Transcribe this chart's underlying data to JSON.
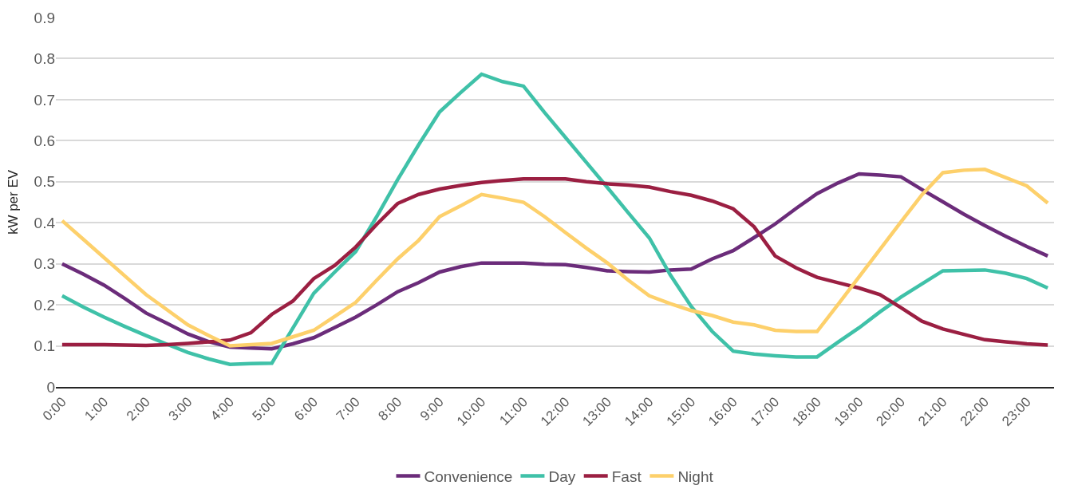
{
  "chart_data": {
    "type": "line",
    "ylabel": "kW per EV",
    "categories": [
      "0:00",
      null,
      "1:00",
      null,
      "2:00",
      null,
      "3:00",
      null,
      "4:00",
      null,
      "5:00",
      null,
      "6:00",
      null,
      "7:00",
      null,
      "8:00",
      null,
      "9:00",
      null,
      "10:00",
      null,
      "11:00",
      null,
      "12:00",
      null,
      "13:00",
      null,
      "14:00",
      null,
      "15:00",
      null,
      "16:00",
      null,
      "17:00",
      null,
      "18:00",
      null,
      "19:00",
      null,
      "20:00",
      null,
      "21:00",
      null,
      "22:00",
      null,
      "23:00",
      null
    ],
    "series": [
      {
        "name": "Convenience",
        "color": "#6b2c7a",
        "values": [
          0.3,
          0.275,
          0.248,
          0.215,
          0.18,
          0.155,
          0.129,
          0.11,
          0.097,
          0.095,
          0.093,
          0.105,
          0.12,
          0.145,
          0.17,
          0.2,
          0.232,
          0.254,
          0.28,
          0.293,
          0.302,
          0.302,
          0.302,
          0.299,
          0.298,
          0.291,
          0.283,
          0.281,
          0.28,
          0.285,
          0.287,
          0.312,
          0.332,
          0.364,
          0.397,
          0.435,
          0.471,
          0.497,
          0.519,
          0.516,
          0.512,
          0.481,
          0.451,
          0.421,
          0.393,
          0.367,
          0.342,
          0.319
        ]
      },
      {
        "name": "Day",
        "color": "#3fc1a8",
        "values": [
          0.222,
          0.195,
          0.17,
          0.147,
          0.125,
          0.104,
          0.084,
          0.068,
          0.055,
          0.057,
          0.058,
          0.143,
          0.228,
          0.28,
          0.33,
          0.415,
          0.505,
          0.59,
          0.67,
          0.717,
          0.762,
          0.744,
          0.733,
          0.669,
          0.608,
          0.547,
          0.486,
          0.424,
          0.363,
          0.273,
          0.196,
          0.135,
          0.087,
          0.08,
          0.076,
          0.073,
          0.073,
          0.109,
          0.144,
          0.183,
          0.219,
          0.251,
          0.283,
          0.284,
          0.285,
          0.277,
          0.264,
          0.241
        ]
      },
      {
        "name": "Fast",
        "color": "#9b1f42",
        "values": [
          0.103,
          0.103,
          0.103,
          0.102,
          0.101,
          0.103,
          0.106,
          0.11,
          0.114,
          0.132,
          0.177,
          0.209,
          0.264,
          0.296,
          0.341,
          0.396,
          0.447,
          0.469,
          0.482,
          0.491,
          0.498,
          0.503,
          0.507,
          0.507,
          0.507,
          0.5,
          0.495,
          0.492,
          0.487,
          0.476,
          0.467,
          0.453,
          0.434,
          0.39,
          0.319,
          0.29,
          0.267,
          0.254,
          0.241,
          0.225,
          0.193,
          0.16,
          0.141,
          0.128,
          0.115,
          0.11,
          0.105,
          0.102
        ]
      },
      {
        "name": "Night",
        "color": "#fdd06b",
        "values": [
          0.405,
          0.36,
          0.315,
          0.27,
          0.225,
          0.188,
          0.151,
          0.125,
          0.1,
          0.103,
          0.106,
          0.122,
          0.138,
          0.172,
          0.206,
          0.26,
          0.312,
          0.357,
          0.415,
          0.441,
          0.469,
          0.46,
          0.45,
          0.415,
          0.376,
          0.338,
          0.302,
          0.26,
          0.222,
          0.203,
          0.186,
          0.174,
          0.158,
          0.151,
          0.138,
          0.135,
          0.135,
          0.201,
          0.268,
          0.335,
          0.402,
          0.468,
          0.522,
          0.528,
          0.53,
          0.51,
          0.49,
          0.448
        ]
      }
    ],
    "ylim": [
      0,
      0.9
    ],
    "yticks": [
      0,
      0.1,
      0.2,
      0.3,
      0.4,
      0.5,
      0.6,
      0.7,
      0.8,
      0.9
    ],
    "grid": "y",
    "legend": "bottom",
    "marker": "none",
    "line_style": "solid"
  }
}
